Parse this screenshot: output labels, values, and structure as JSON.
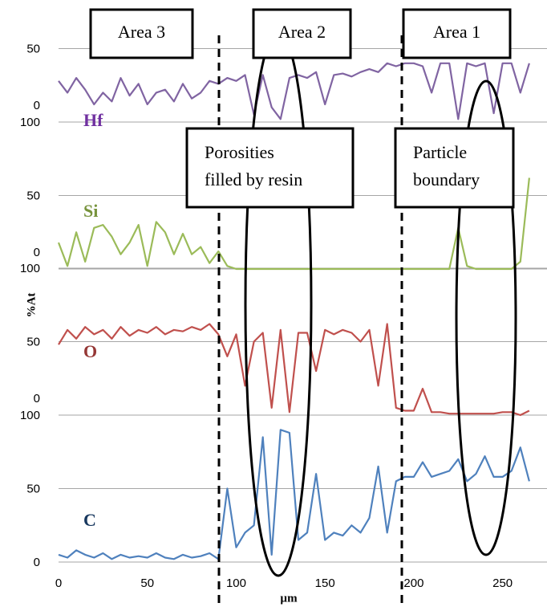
{
  "chart_data": {
    "type": "line",
    "xlabel": "µm",
    "ylabel": "%At",
    "x": [
      0,
      5,
      10,
      15,
      20,
      25,
      30,
      35,
      40,
      45,
      50,
      55,
      60,
      65,
      70,
      75,
      80,
      85,
      90,
      95,
      100,
      105,
      110,
      115,
      120,
      125,
      130,
      135,
      140,
      145,
      150,
      155,
      160,
      165,
      170,
      175,
      180,
      185,
      190,
      195,
      200,
      205,
      210,
      215,
      220,
      225,
      230,
      235,
      240,
      245,
      250,
      255,
      260,
      265
    ],
    "xlim": [
      0,
      275
    ],
    "xticks": [
      0,
      50,
      100,
      150,
      200,
      250
    ],
    "series": [
      {
        "name": "Hf",
        "color": "#8064a2",
        "label_color": "#7030a0",
        "ylim": [
          0,
          100
        ],
        "yticks": [
          0,
          50
        ],
        "values": [
          28,
          20,
          30,
          22,
          12,
          20,
          14,
          30,
          18,
          26,
          12,
          20,
          22,
          14,
          26,
          16,
          20,
          28,
          26,
          30,
          28,
          32,
          5,
          32,
          10,
          2,
          30,
          32,
          30,
          34,
          12,
          32,
          33,
          31,
          34,
          36,
          34,
          40,
          38,
          40,
          40,
          38,
          20,
          40,
          40,
          2,
          40,
          38,
          40,
          6,
          40,
          40,
          20,
          40
        ]
      },
      {
        "name": "Si",
        "color": "#9bbb59",
        "label_color": "#77933c",
        "ylim": [
          0,
          100
        ],
        "yticks": [
          0,
          50,
          100
        ],
        "values": [
          18,
          2,
          25,
          5,
          28,
          30,
          22,
          10,
          18,
          30,
          2,
          32,
          25,
          10,
          24,
          10,
          15,
          4,
          12,
          2,
          0,
          0,
          0,
          0,
          0,
          0,
          0,
          0,
          0,
          0,
          0,
          0,
          0,
          0,
          0,
          0,
          0,
          0,
          0,
          0,
          0,
          0,
          0,
          0,
          0,
          28,
          2,
          0,
          0,
          0,
          0,
          0,
          5,
          62
        ]
      },
      {
        "name": "O",
        "color": "#c0504d",
        "label_color": "#953735",
        "ylim": [
          0,
          100
        ],
        "yticks": [
          0,
          50,
          100
        ],
        "values": [
          48,
          58,
          52,
          60,
          55,
          58,
          52,
          60,
          54,
          58,
          56,
          60,
          55,
          58,
          57,
          60,
          58,
          62,
          55,
          40,
          55,
          20,
          50,
          56,
          5,
          58,
          2,
          56,
          56,
          30,
          58,
          55,
          58,
          56,
          50,
          58,
          20,
          62,
          5,
          3,
          3,
          18,
          2,
          2,
          1,
          1,
          1,
          1,
          1,
          1,
          2,
          2,
          0,
          3
        ]
      },
      {
        "name": "C",
        "color": "#4f81bd",
        "label_color": "#17375e",
        "ylim": [
          0,
          100
        ],
        "yticks": [
          0,
          50,
          100
        ],
        "values": [
          5,
          3,
          8,
          5,
          3,
          6,
          2,
          5,
          3,
          4,
          3,
          6,
          3,
          2,
          5,
          3,
          4,
          6,
          2,
          50,
          10,
          20,
          25,
          85,
          5,
          90,
          88,
          15,
          20,
          60,
          15,
          20,
          18,
          25,
          20,
          30,
          65,
          20,
          55,
          58,
          58,
          68,
          58,
          60,
          62,
          70,
          55,
          60,
          72,
          58,
          58,
          62,
          78,
          55
        ]
      }
    ],
    "annotations": [
      {
        "lines": [
          "Area 3"
        ]
      },
      {
        "lines": [
          "Area 2"
        ]
      },
      {
        "lines": [
          "Area 1"
        ]
      },
      {
        "lines": [
          "Porosities",
          "filled by resin"
        ]
      },
      {
        "lines": [
          "Particle",
          "boundary"
        ]
      }
    ]
  }
}
